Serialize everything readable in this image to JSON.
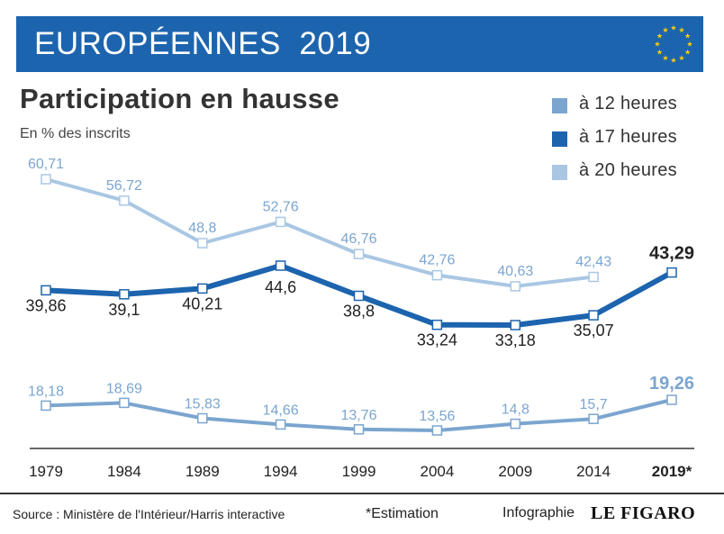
{
  "header": {
    "banner_title": "EUROPÉENNES  2019",
    "flag_icon": "eu-flag-icon",
    "banner_color": "#1d64ae"
  },
  "chart_data": {
    "type": "line",
    "title": "Participation en hausse",
    "subtitle": "En % des inscrits",
    "categories": [
      "1979",
      "1984",
      "1989",
      "1994",
      "1999",
      "2004",
      "2009",
      "2014",
      "2019*"
    ],
    "series": [
      {
        "name": "à 12 heures",
        "color": "#7ba5cf",
        "values": [
          18.18,
          18.69,
          15.83,
          14.66,
          13.76,
          13.56,
          14.8,
          15.7,
          19.26
        ],
        "labels": [
          "18,18",
          "18,69",
          "15,83",
          "14,66",
          "13,76",
          "13,56",
          "14,8",
          "15,7",
          "19,26"
        ]
      },
      {
        "name": "à 17 heures",
        "color": "#1d64ae",
        "values": [
          39.86,
          39.1,
          40.21,
          44.6,
          38.8,
          33.24,
          33.18,
          35.07,
          43.29
        ],
        "labels": [
          "39,86",
          "39,1",
          "40,21",
          "44,6",
          "38,8",
          "33,24",
          "33,18",
          "35,07",
          "43,29"
        ]
      },
      {
        "name": "à 20 heures",
        "color": "#a9c7e3",
        "values": [
          60.71,
          56.72,
          48.8,
          52.76,
          46.76,
          42.76,
          40.63,
          42.43,
          null
        ],
        "labels": [
          "60,71",
          "56,72",
          "48,8",
          "52,76",
          "46,76",
          "42,76",
          "40,63",
          "42,43",
          ""
        ]
      }
    ],
    "legend_position": "top-right",
    "grid": false
  },
  "footer": {
    "source": "Source : Ministère de l'Intérieur/Harris interactive",
    "note": "*Estimation",
    "credit": "Infographie",
    "logo": "LE FIGARO"
  }
}
